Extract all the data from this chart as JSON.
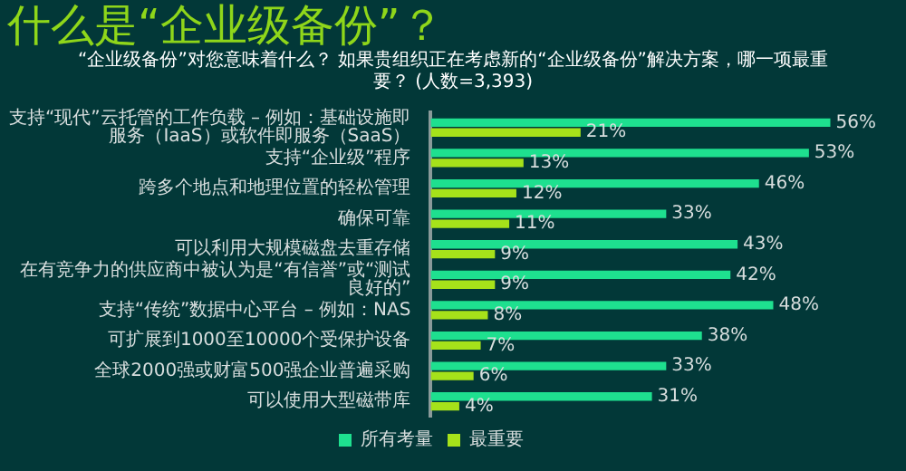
{
  "chart_data": {
    "type": "bar",
    "orientation": "horizontal",
    "title": "什么是“企业级备份”？",
    "subtitle": "“企业级备份”对您意味着什么？ 如果贵组织正在考虑新的“企业级备份”解决方案，哪一项最重要？ (人数=3,393)",
    "categories": [
      "支持“现代”云托管的工作负载 – 例如：基础设施即服务（IaaS）或软件即服务（SaaS）",
      "支持“企业级”程序",
      "跨多个地点和地理位置的轻松管理",
      "确保可靠",
      "可以利用大规模磁盘去重存储",
      "在有竞争力的供应商中被认为是“有信誉”或“测试良好的”",
      "支持“传统”数据中心平台 – 例如：NAS",
      "可扩展到1000至10000个受保护设备",
      "全球2000强或财富500强企业普遍采购",
      "可以使用大型磁带库"
    ],
    "series": [
      {
        "name": "所有考量",
        "color": "#1ee08f",
        "values": [
          56,
          53,
          46,
          33,
          43,
          42,
          48,
          38,
          33,
          31
        ],
        "value_labels": [
          "56%",
          "53%",
          "46%",
          "33%",
          "43%",
          "42%",
          "48%",
          "38%",
          "33%",
          "31%"
        ]
      },
      {
        "name": "最重要",
        "color": "#a6e21a",
        "values": [
          21,
          13,
          12,
          11,
          9,
          9,
          8,
          7,
          6,
          4
        ],
        "value_labels": [
          "21%",
          "13%",
          "12%",
          "11%",
          "9%",
          "9%",
          "8%",
          "7%",
          "6%",
          "4%"
        ]
      }
    ],
    "legend": "bottom"
  }
}
